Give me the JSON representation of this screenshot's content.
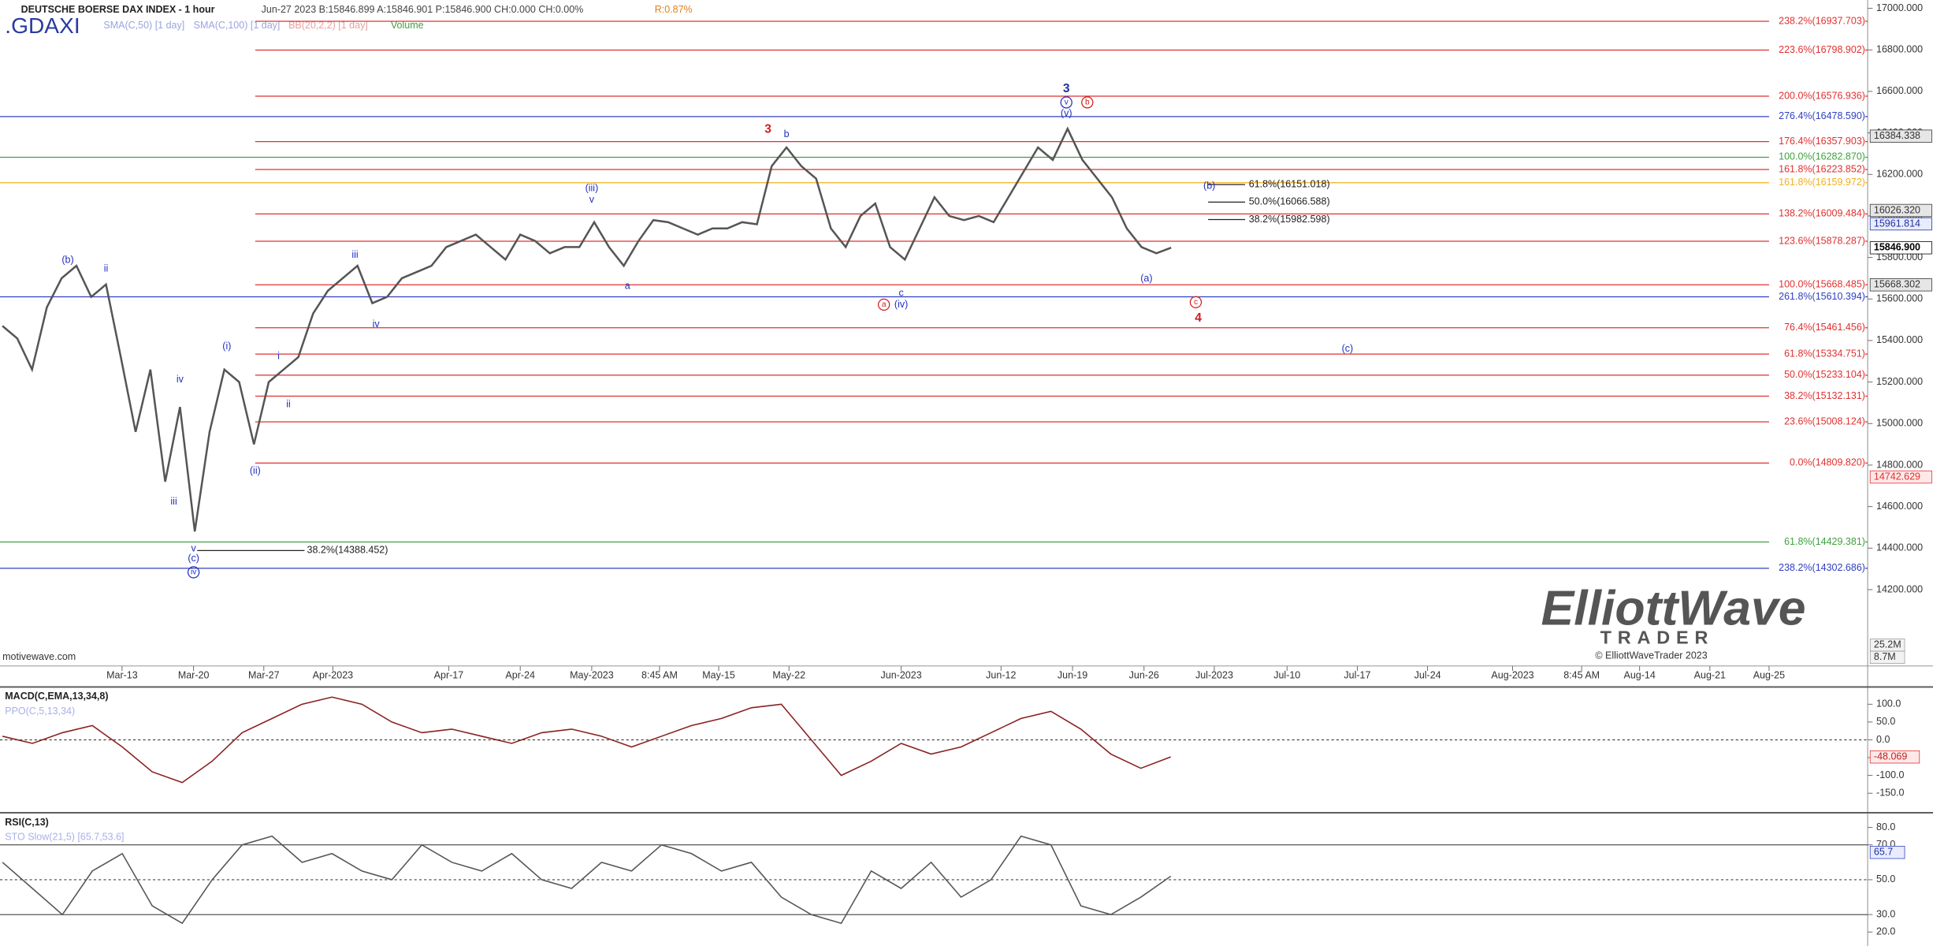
{
  "header": {
    "title": "DEUTSCHE BOERSE DAX INDEX - 1 hour",
    "quote": "Jun-27 2023 B:15846.899 A:15846.901 P:15846.900 CH:0.000 CH:0.00%",
    "ratio": "R:0.87%",
    "symbol": ".GDAXI",
    "indicators": [
      "SMA(C,50) [1 day]",
      "SMA(C,100) [1 day]",
      "BB(20,2,2) [1 day]",
      "Volume"
    ],
    "source": "motivewave.com"
  },
  "logo": {
    "name": "ElliottWave",
    "tagline": "TRADER",
    "copyright": "© ElliottWaveTrader 2023"
  },
  "chart_data": [
    {
      "type": "line",
      "color": "#555555",
      "values": [
        15470,
        15410,
        15260,
        15560,
        15700,
        15760,
        15610,
        15670,
        15320,
        14960,
        15260,
        14720,
        15080,
        14480,
        14960,
        15260,
        15200,
        14900,
        15200,
        15260,
        15320,
        15530,
        15640,
        15700,
        15760,
        15580,
        15610,
        15700,
        15730,
        15760,
        15850,
        15880,
        15910,
        15850,
        15790,
        15910,
        15880,
        15820,
        15850,
        15850,
        15970,
        15850,
        15760,
        15880,
        15980,
        15970,
        15940,
        15910,
        15940,
        15940,
        15970,
        15960,
        16240,
        16330,
        16240,
        16180,
        15940,
        15850,
        16000,
        16060,
        15850,
        15790,
        15940,
        16090,
        16000,
        15980,
        16000,
        15970,
        16090,
        16210,
        16330,
        16270,
        16420,
        16270,
        16180,
        16090,
        15940,
        15850,
        15820,
        15847
      ],
      "ylim": [
        13850,
        17040
      ],
      "yticks": [
        {
          "value": 14200,
          "label": "14200.000"
        },
        {
          "value": 14400,
          "label": "14400.000"
        },
        {
          "value": 14600,
          "label": "14600.000"
        },
        {
          "value": 14800,
          "label": "14800.000"
        },
        {
          "value": 15000,
          "label": "15000.000"
        },
        {
          "value": 15200,
          "label": "15200.000"
        },
        {
          "value": 15400,
          "label": "15400.000"
        },
        {
          "value": 15600,
          "label": "15600.000"
        },
        {
          "value": 15800,
          "label": "15800.000"
        },
        {
          "value": 16000,
          "label": "16000.000"
        },
        {
          "value": 16200,
          "label": "16200.000"
        },
        {
          "value": 16400,
          "label": "16400.000"
        },
        {
          "value": 16600,
          "label": "16600.000"
        },
        {
          "value": 16800,
          "label": "16800.000"
        },
        {
          "value": 17000,
          "label": "17000.000"
        }
      ],
      "xlabels": [
        "Mar-13",
        "Mar-20",
        "Mar-27",
        "Apr-2023",
        "Apr-17",
        "Apr-24",
        "May-2023",
        "8:45 AM",
        "May-15",
        "May-22",
        "Jun-2023",
        "Jun-12",
        "Jun-19",
        "Jun-26",
        "Jul-2023",
        "Jul-10",
        "Jul-17",
        "Jul-24",
        "Aug-2023",
        "8:45 AM",
        "Aug-14",
        "Aug-21",
        "Aug-25"
      ],
      "levels": [
        {
          "label": "238.2%(16937.703)",
          "value": 16937.703,
          "color": "#e03030",
          "span": "right"
        },
        {
          "label": "223.6%(16798.902)",
          "value": 16798.902,
          "color": "#e03030",
          "span": "right"
        },
        {
          "label": "200.0%(16576.936)",
          "value": 16576.936,
          "color": "#e03030",
          "span": "right"
        },
        {
          "label": "276.4%(16478.590)",
          "value": 16478.59,
          "color": "#3040c0",
          "span": "full"
        },
        {
          "label": "176.4%(16357.903)",
          "value": 16357.903,
          "color": "#e03030",
          "span": "right"
        },
        {
          "label": "100.0%(16282.870)",
          "value": 16282.87,
          "color": "#40a040",
          "span": "full"
        },
        {
          "label": "161.8%(16223.852)",
          "value": 16223.852,
          "color": "#e03030",
          "span": "right"
        },
        {
          "label": "161.8%(16159.972)",
          "value": 16159.972,
          "color": "#f0b020",
          "span": "full"
        },
        {
          "label": "138.2%(16009.484)",
          "value": 16009.484,
          "color": "#e03030",
          "span": "right"
        },
        {
          "label": "123.6%(15878.287)",
          "value": 15878.287,
          "color": "#e03030",
          "span": "right"
        },
        {
          "label": "100.0%(15668.485)",
          "value": 15668.485,
          "color": "#e03030",
          "span": "right"
        },
        {
          "label": "261.8%(15610.394)",
          "value": 15610.394,
          "color": "#3040c0",
          "span": "full"
        },
        {
          "label": "76.4%(15461.456)",
          "value": 15461.456,
          "color": "#e03030",
          "span": "right"
        },
        {
          "label": "61.8%(15334.751)",
          "value": 15334.751,
          "color": "#e03030",
          "span": "right"
        },
        {
          "label": "50.0%(15233.104)",
          "value": 15233.104,
          "color": "#e03030",
          "span": "right"
        },
        {
          "label": "38.2%(15132.131)",
          "value": 15132.131,
          "color": "#e03030",
          "span": "right"
        },
        {
          "label": "23.6%(15008.124)",
          "value": 15008.124,
          "color": "#e03030",
          "span": "right"
        },
        {
          "label": "0.0%(14809.820)",
          "value": 14809.82,
          "color": "#e03030",
          "span": "right"
        },
        {
          "label": "61.8%(14429.381)",
          "value": 14429.381,
          "color": "#40a040",
          "span": "full"
        },
        {
          "label": "238.2%(14302.686)",
          "value": 14302.686,
          "color": "#3040c0",
          "span": "full"
        },
        {
          "label": "61.8%(16151.018)",
          "value": 16151.018,
          "color": "#222222",
          "span": "short"
        },
        {
          "label": "50.0%(16066.588)",
          "value": 16066.588,
          "color": "#222222",
          "span": "short"
        },
        {
          "label": "38.2%(15982.598)",
          "value": 15982.598,
          "color": "#222222",
          "span": "short"
        },
        {
          "label": "38.2%(14388.452)",
          "value": 14388.452,
          "color": "#222222",
          "span": "left"
        }
      ],
      "markers": [
        {
          "value": 16384.338,
          "label": "16384.338",
          "color": "#333333",
          "bg": "#e6e6e6"
        },
        {
          "value": 16026.32,
          "label": "16026.320",
          "color": "#333333",
          "bg": "#e6e6e6"
        },
        {
          "value": 15961.814,
          "label": "15961.814",
          "color": "#2030a0",
          "bg": "#e8ecff"
        },
        {
          "value": 15846.9,
          "label": "15846.900",
          "color": "#000000",
          "bg": "#ffffff"
        },
        {
          "value": 15668.302,
          "label": "15668.302",
          "color": "#333333",
          "bg": "#e6e6e6"
        },
        {
          "value": 14742.629,
          "label": "14742.629",
          "color": "#e03030",
          "bg": "#ffe8e8"
        }
      ],
      "volume_labels": [
        "25.2M",
        "8.7M"
      ],
      "waves": [
        {
          "text": "(b)",
          "color": "#2030c0"
        },
        {
          "text": "ii",
          "color": "#2030c0"
        },
        {
          "text": "iv",
          "color": "#2030c0"
        },
        {
          "text": "(i)",
          "color": "#2030c0"
        },
        {
          "text": "iii",
          "color": "#2030c0"
        },
        {
          "text": "v",
          "color": "#2030c0"
        },
        {
          "text": "(c)",
          "color": "#2030c0"
        },
        {
          "text": "iv",
          "color": "#2030c0",
          "circled": true
        },
        {
          "text": "(ii)",
          "color": "#2030c0"
        },
        {
          "text": "i",
          "color": "#2030c0"
        },
        {
          "text": "ii",
          "color": "#2030c0"
        },
        {
          "text": "iii",
          "color": "#2030c0"
        },
        {
          "text": "iv",
          "color": "#2030c0"
        },
        {
          "text": "(iii)",
          "color": "#2030c0"
        },
        {
          "text": "v",
          "color": "#2030c0"
        },
        {
          "text": "a",
          "color": "#2030c0"
        },
        {
          "text": "3",
          "color": "#d02020",
          "bold": true
        },
        {
          "text": "b",
          "color": "#2030c0"
        },
        {
          "text": "c",
          "color": "#2030c0"
        },
        {
          "text": "(iv)",
          "color": "#2030c0"
        },
        {
          "text": "a",
          "color": "#d02020",
          "circled": true
        },
        {
          "text": "3",
          "color": "#2030a0",
          "bold": true
        },
        {
          "text": "v",
          "color": "#2030c0",
          "circled": true
        },
        {
          "text": "b",
          "color": "#d02020",
          "circled": true
        },
        {
          "text": "(v)",
          "color": "#2030c0"
        },
        {
          "text": "(a)",
          "color": "#2030c0"
        },
        {
          "text": "(b)",
          "color": "#2030c0"
        },
        {
          "text": "c",
          "color": "#d02020",
          "circled": true
        },
        {
          "text": "4",
          "color": "#d02020",
          "bold": true
        },
        {
          "text": "(c)",
          "color": "#2030c0"
        }
      ]
    },
    {
      "type": "line",
      "title": "MACD(C,EMA,13,34,8)",
      "subtitle": "PPO(C,5,13,34)",
      "color": "#8a2020",
      "values": [
        10,
        -10,
        20,
        40,
        -20,
        -90,
        -120,
        -60,
        20,
        60,
        100,
        120,
        100,
        50,
        20,
        30,
        10,
        -10,
        20,
        30,
        10,
        -20,
        10,
        40,
        60,
        90,
        100,
        0,
        -100,
        -60,
        -10,
        -40,
        -20,
        20,
        60,
        80,
        30,
        -40,
        -80,
        -48
      ],
      "ylim": [
        -198,
        145
      ],
      "yticks": [
        {
          "value": 100,
          "label": "100.0"
        },
        {
          "value": 50,
          "label": "50.0"
        },
        {
          "value": 0,
          "label": "0.0"
        },
        {
          "value": -50,
          "label": "-50.0"
        },
        {
          "value": -100,
          "label": "-100.0"
        },
        {
          "value": -150,
          "label": "-150.0"
        }
      ],
      "last_value": -48.069
    },
    {
      "type": "line",
      "title": "RSI(C,13)",
      "subtitle": "STO Slow(21,5) [65.7,53.6]",
      "color": "#555555",
      "values": [
        60,
        45,
        30,
        55,
        65,
        35,
        25,
        50,
        70,
        75,
        60,
        65,
        55,
        50,
        70,
        60,
        55,
        65,
        50,
        45,
        60,
        55,
        70,
        65,
        55,
        60,
        40,
        30,
        25,
        55,
        45,
        60,
        40,
        50,
        75,
        70,
        35,
        30,
        40,
        52
      ],
      "ylim": [
        12,
        87
      ],
      "yticks": [
        {
          "value": 80,
          "label": "80.0"
        },
        {
          "value": 70,
          "label": "70.0"
        },
        {
          "value": 50,
          "label": "50.0"
        },
        {
          "value": 30,
          "label": "30.0"
        },
        {
          "value": 20,
          "label": "20.0"
        }
      ],
      "badges": [
        {
          "value": 65.7,
          "label": "65.7"
        }
      ]
    }
  ]
}
